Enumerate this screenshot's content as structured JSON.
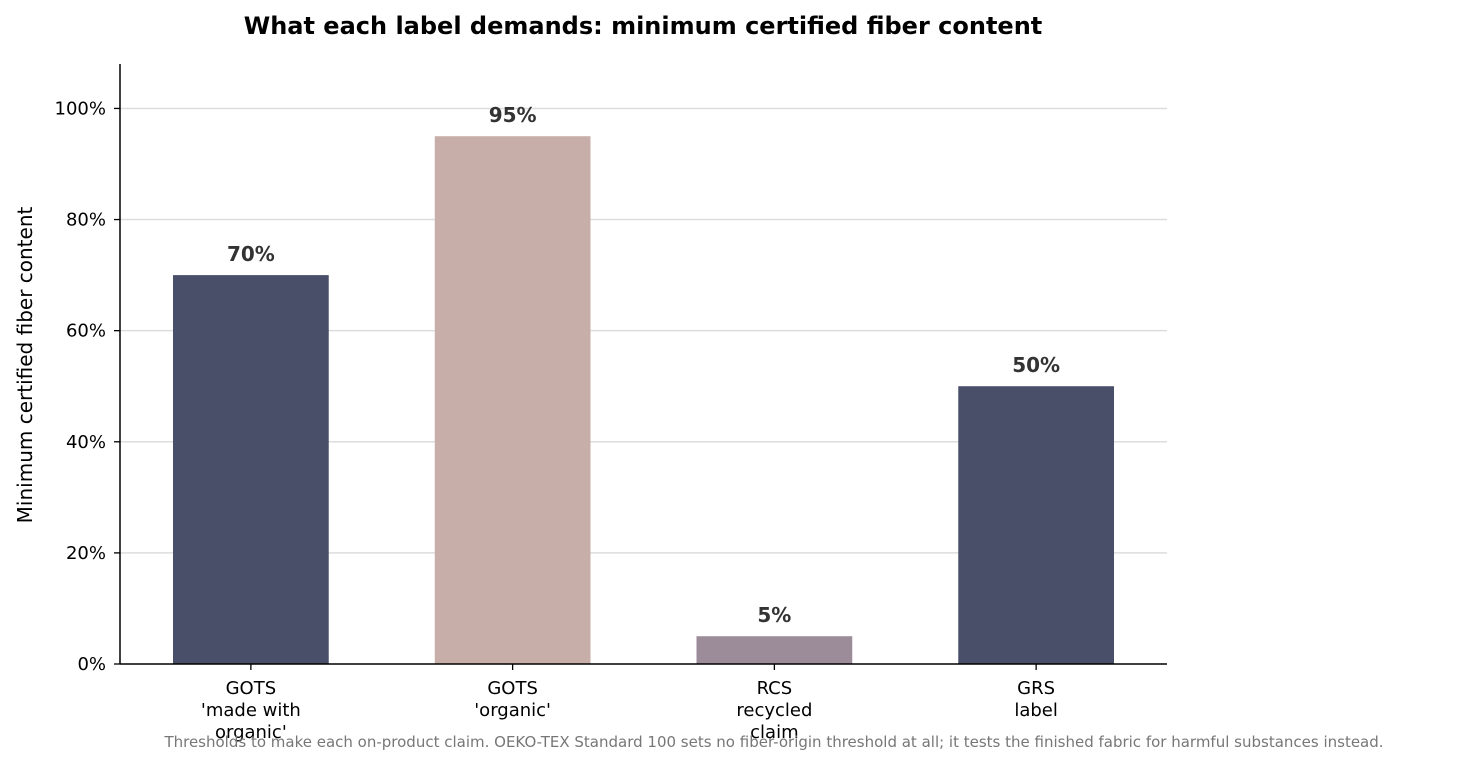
{
  "chart_data": {
    "type": "bar",
    "title": "What each label demands: minimum certified fiber content",
    "xlabel": "",
    "ylabel": "Minimum certified fiber content",
    "categories": [
      [
        "GOTS",
        "'made with",
        "organic'"
      ],
      [
        "GOTS",
        "'organic'"
      ],
      [
        "RCS",
        "recycled",
        "claim"
      ],
      [
        "GRS",
        "label"
      ]
    ],
    "values": [
      70,
      95,
      5,
      50
    ],
    "value_labels": [
      "70%",
      "95%",
      "5%",
      "50%"
    ],
    "colors": [
      "#4a4f69",
      "#c8aea8",
      "#9c8c9a",
      "#4a4f69"
    ],
    "ylim": [
      0,
      108
    ],
    "yticks": [
      0,
      20,
      40,
      60,
      80,
      100
    ],
    "ytick_labels": [
      "0%",
      "20%",
      "40%",
      "60%",
      "80%",
      "100%"
    ],
    "grid": "horizontal",
    "legend": "none"
  },
  "footnote": "Thresholds to make each on-product claim. OEKO-TEX Standard 100 sets no fiber-origin threshold at all; it tests the finished fabric for harmful substances instead."
}
